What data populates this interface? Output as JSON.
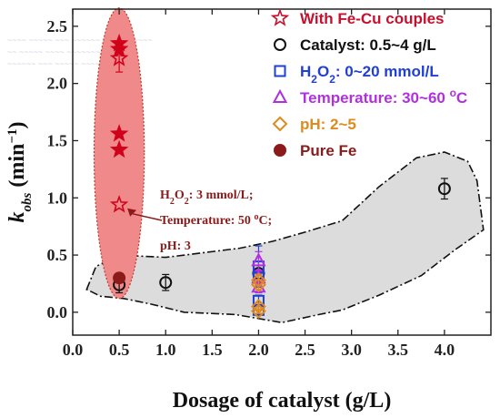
{
  "chart_data": {
    "type": "scatter",
    "xlabel": "Dosage of catalyst (g/L)",
    "ylabel": {
      "base": "k",
      "sub": "obs",
      "unit": " (min",
      "sup": "−1",
      "close": ")"
    },
    "xlim": [
      0.0,
      4.5
    ],
    "ylim": [
      -0.2,
      2.65
    ],
    "x_ticks": [
      "0.0",
      "0.5",
      "1.0",
      "1.5",
      "2.0",
      "2.5",
      "3.0",
      "3.5",
      "4.0"
    ],
    "y_ticks": [
      "0.0",
      "0.5",
      "1.0",
      "1.5",
      "2.0",
      "2.5"
    ],
    "grid": false,
    "legend_placement": "top-right",
    "legend": [
      {
        "label": "With Fe-Cu couples",
        "marker": "star-open",
        "color": "#c8102e"
      },
      {
        "label": "Catalyst: 0.5~4 g/L",
        "marker": "circle-open",
        "color": "#111111"
      },
      {
        "label_parts": [
          "H",
          "2",
          "O",
          "2",
          ": 0~20 mmol/L"
        ],
        "marker": "square-open",
        "color": "#1f3fd6"
      },
      {
        "label_parts": [
          "Temperature: 30~60 ",
          "o",
          "C"
        ],
        "marker": "triangle-open",
        "color": "#b030e0"
      },
      {
        "label": "pH: 2~5",
        "marker": "diamond-open",
        "color": "#e08a1e"
      },
      {
        "label": "Pure Fe",
        "marker": "circle-filled",
        "color": "#8b1a1a"
      }
    ],
    "series": [
      {
        "name": "With Fe-Cu couples",
        "points": [
          {
            "x": 0.5,
            "y": 2.35,
            "filled": true
          },
          {
            "x": 0.5,
            "y": 2.3,
            "filled": true
          },
          {
            "x": 0.5,
            "y": 2.22,
            "filled": false,
            "err": 0.12
          },
          {
            "x": 0.5,
            "y": 1.56,
            "filled": true
          },
          {
            "x": 0.5,
            "y": 1.42,
            "filled": true
          },
          {
            "x": 0.5,
            "y": 0.94,
            "filled": false
          }
        ]
      },
      {
        "name": "Catalyst: 0.5~4 g/L",
        "points": [
          {
            "x": 0.5,
            "y": 0.24,
            "err": 0.07
          },
          {
            "x": 1.0,
            "y": 0.26,
            "err": 0.07
          },
          {
            "x": 2.0,
            "y": 0.34,
            "err": 0.07
          },
          {
            "x": 4.0,
            "y": 1.08,
            "err": 0.09
          }
        ]
      },
      {
        "name": "H2O2: 0~20 mmol/L",
        "points": [
          {
            "x": 2.0,
            "y": 0.4,
            "err": 0.18
          },
          {
            "x": 2.0,
            "y": 0.3,
            "err": 0.06
          },
          {
            "x": 2.0,
            "y": 0.1,
            "err": 0.05
          },
          {
            "x": 2.0,
            "y": 0.02,
            "err": 0.04
          }
        ]
      },
      {
        "name": "Temperature: 30~60 oC",
        "points": [
          {
            "x": 2.0,
            "y": 0.45,
            "err": 0.08
          },
          {
            "x": 2.0,
            "y": 0.3,
            "err": 0.06
          },
          {
            "x": 2.0,
            "y": 0.22,
            "err": 0.05
          }
        ]
      },
      {
        "name": "pH: 2~5",
        "points": [
          {
            "x": 2.0,
            "y": 0.28,
            "err": 0.05
          },
          {
            "x": 2.0,
            "y": 0.24,
            "err": 0.04
          },
          {
            "x": 2.0,
            "y": 0.05,
            "err": 0.03
          },
          {
            "x": 2.0,
            "y": 0.01,
            "err": 0.02
          }
        ]
      },
      {
        "name": "Pure Fe",
        "points": [
          {
            "x": 0.5,
            "y": 0.3
          }
        ]
      }
    ],
    "annotation": {
      "line1_parts": [
        "H",
        "2",
        "O",
        "2",
        ": 3 mmol/L;"
      ],
      "line2_parts": [
        "Temperature: 50 ",
        "o",
        "C;"
      ],
      "line3": "pH: 3"
    },
    "colors": {
      "ellipse_fill": "#f08a8a",
      "gray_region": "#dcdcdc",
      "star": "#d0021b"
    }
  }
}
